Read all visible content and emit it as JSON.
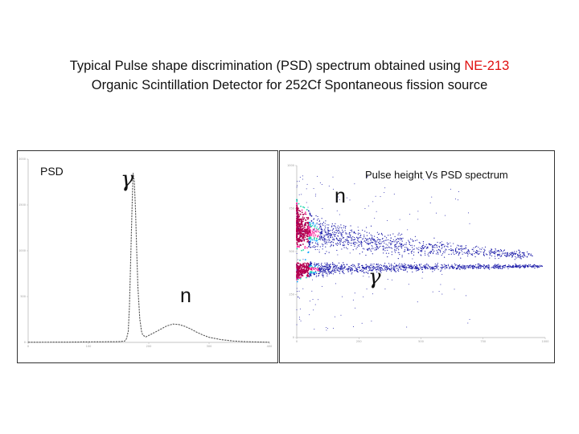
{
  "title": {
    "line1_prefix": "Typical  Pulse shape discrimination (PSD) spectrum obtained using  ",
    "line1_highlight": "NE-213",
    "line2": "Organic Scintillation Detector for 252Cf Spontaneous fission source",
    "highlight_color": "#e01010"
  },
  "chart_data": [
    {
      "type": "line",
      "title": "PSD",
      "annotations": [
        "γ",
        "n"
      ],
      "grid": false,
      "x_ticks": [
        "0",
        "100",
        "200",
        "300",
        "400"
      ],
      "xlim": [
        0,
        400
      ],
      "y_ticks": [
        "0",
        "500",
        "1000",
        "1500",
        "2000"
      ],
      "ylim": [
        0,
        2000
      ],
      "series": [
        {
          "color": "#555555",
          "style": "dashed",
          "points": [
            [
              0,
              2
            ],
            [
              60,
              3
            ],
            [
              100,
              5
            ],
            [
              150,
              8
            ],
            [
              160,
              14
            ],
            [
              163,
              40
            ],
            [
              166,
              120
            ],
            [
              168,
              400
            ],
            [
              170,
              900
            ],
            [
              172,
              1400
            ],
            [
              174,
              1850
            ],
            [
              176,
              1760
            ],
            [
              178,
              1450
            ],
            [
              180,
              1000
            ],
            [
              182,
              600
            ],
            [
              185,
              260
            ],
            [
              188,
              120
            ],
            [
              190,
              80
            ],
            [
              195,
              60
            ],
            [
              200,
              75
            ],
            [
              210,
              110
            ],
            [
              220,
              145
            ],
            [
              230,
              180
            ],
            [
              240,
              200
            ],
            [
              250,
              195
            ],
            [
              260,
              175
            ],
            [
              270,
              145
            ],
            [
              280,
              110
            ],
            [
              290,
              80
            ],
            [
              300,
              55
            ],
            [
              320,
              30
            ],
            [
              340,
              15
            ],
            [
              360,
              8
            ],
            [
              380,
              4
            ],
            [
              400,
              2
            ]
          ]
        }
      ]
    },
    {
      "type": "scatter",
      "title": "Pulse height Vs  PSD spectrum",
      "annotations": [
        "n",
        "γ"
      ],
      "grid": false,
      "x_ticks": [
        "0",
        "250",
        "500",
        "750",
        "1000"
      ],
      "xlim": [
        0,
        1000
      ],
      "y_ticks": [
        "0",
        "250",
        "500",
        "750",
        "1000"
      ],
      "ylim": [
        0,
        1000
      ],
      "colors": [
        "#1a1aa8",
        "#00a0ff",
        "#17d3a8",
        "#ff1f9b",
        "#b40050"
      ],
      "bands": [
        {
          "name_on_chart": "n",
          "y_center_start": 660,
          "y_center_end": 475,
          "x_end": 950
        },
        {
          "name_on_chart": "γ",
          "y_center_start": 390,
          "y_center_end": 415,
          "x_end": 990
        }
      ]
    }
  ]
}
